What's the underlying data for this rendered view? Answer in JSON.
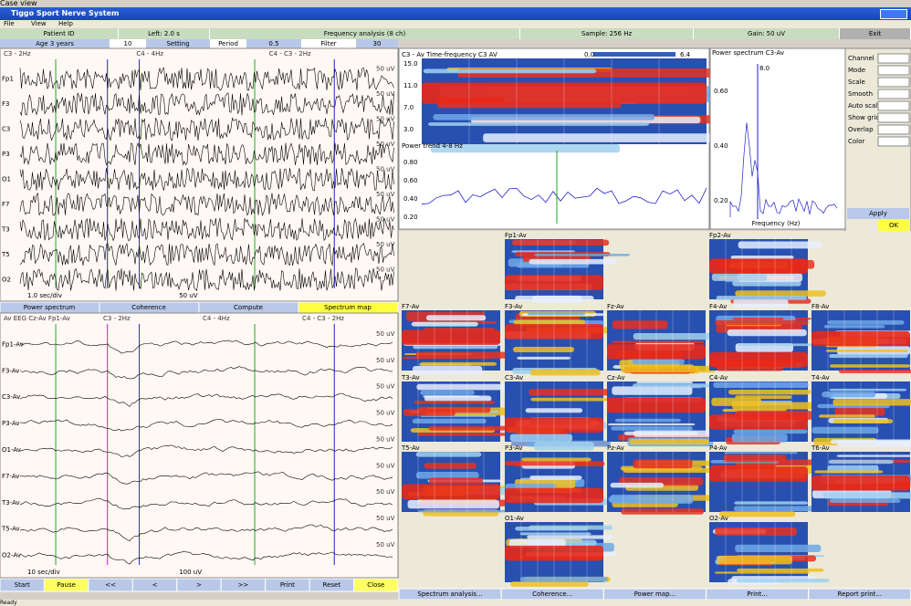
{
  "caption": "Case view",
  "window": {
    "title": "Tiggo Sport Nerve System"
  },
  "menu": [
    "File",
    "View",
    "Help"
  ],
  "info": [
    "Patient ID",
    "Left: 2.0 s",
    "Frequency analysis (8 ch)",
    "Sample: 256 Hz",
    "Gain: 50 uV",
    "Exit"
  ],
  "info2": [
    "Age 3 years",
    "10",
    "Setting",
    "Period",
    "0.5",
    "Filter",
    "30"
  ],
  "top_eeg": {
    "headers": [
      "C3 - 2Hz",
      "C4 - 4Hz",
      "C4 - C3 - 2Hz"
    ],
    "channels": [
      "Fp1",
      "F3",
      "C3",
      "P3",
      "O1",
      "F7",
      "T3",
      "T5",
      "O2"
    ],
    "scale": "50 uV",
    "footer": [
      "1.0 sec/div",
      "50 uV"
    ]
  },
  "tabs": [
    "Power spectrum",
    "Coherence",
    "Compute",
    "Spectrum map"
  ],
  "bottom_eeg": {
    "headers": [
      "Av EEG  Cz-Av  Fp1-Av",
      "C3 - 2Hz",
      "C4 - 4Hz",
      "C4 - C3 - 2Hz"
    ],
    "channels": [
      "Fp1-Av",
      "F3-Av",
      "C3-Av",
      "P3-Av",
      "O1-Av",
      "F7-Av",
      "T3-Av",
      "T5-Av",
      "O2-Av"
    ],
    "scale": "50 uV",
    "footer": [
      "10 sec/div",
      "100 uV"
    ]
  },
  "left_buttons": [
    "Start",
    "Pause",
    "<<",
    "<",
    ">",
    ">>",
    "Print",
    "Reset",
    "Close"
  ],
  "spectrogram": {
    "title": "C3 - Av  Time-frequency  C3  AV",
    "yticks": [
      "15.0",
      "11.0",
      "7.0",
      "3.0"
    ],
    "colorbar": [
      "0.0",
      "6.4"
    ]
  },
  "trend": {
    "title": "Power trend  4-8 Hz",
    "yticks": [
      "0.80",
      "0.60",
      "0.40",
      "0.20"
    ]
  },
  "spectrum": {
    "title": "Power spectrum  C3-Av",
    "xlabel": "Frequency (Hz)",
    "yticks": [
      "0.60",
      "0.40",
      "0.20"
    ],
    "marker": "8.0"
  },
  "controls": {
    "labels": [
      "Channel",
      "Mode",
      "Scale",
      "Smooth",
      "Auto scale",
      "Show grid",
      "Overlap",
      "Color"
    ],
    "buttons": [
      "Apply",
      "OK"
    ]
  },
  "topo": [
    [
      "Fp1-Av",
      "Fp2-Av"
    ],
    [
      "F7-Av",
      "F3-Av",
      "Fz-Av",
      "F4-Av",
      "F8-Av"
    ],
    [
      "T3-Av",
      "C3-Av",
      "Cz-Av",
      "C4-Av",
      "T4-Av"
    ],
    [
      "T5-Av",
      "P3-Av",
      "Pz-Av",
      "P4-Av",
      "T6-Av"
    ],
    [
      "O1-Av",
      "O2-Av"
    ]
  ],
  "right_buttons": [
    "Spectrum analysis...",
    "Coherence...",
    "Power map...",
    "Print...",
    "Report print..."
  ],
  "status": "Ready"
}
